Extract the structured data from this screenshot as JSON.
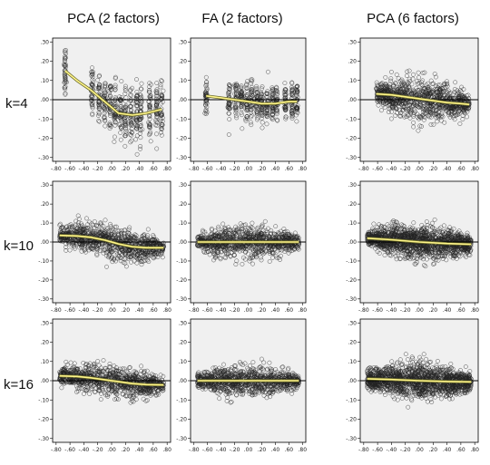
{
  "figure": {
    "column_titles": [
      "PCA (2 factors)",
      "FA (2 factors)",
      "PCA (6 factors)"
    ],
    "row_labels": [
      "k=4",
      "k=10",
      "k=16"
    ]
  },
  "chart_data": {
    "type": "scatter",
    "layout": "3x3 grid of scatter plots with a fitted (yellow) smooth curve and a reference line at y=0",
    "x_ticks": [
      "-.80",
      "-.60",
      "-.40",
      "-.20",
      ".00",
      ".20",
      ".40",
      ".60",
      ".80"
    ],
    "y_ticks": [
      ".30",
      ".20",
      ".10",
      ".00",
      "-.10",
      "-.20",
      "-.30"
    ],
    "xlim": [
      -0.85,
      0.85
    ],
    "ylim": [
      -0.32,
      0.32
    ],
    "reference_line_y": 0,
    "colors": {
      "points": "#222222",
      "fit_line": "#fff58a",
      "fit_edge": "#6b6b2a",
      "panel_bg": "#f0f0f0",
      "ref_line": "#000000"
    },
    "panels": [
      {
        "row": "k=4",
        "column": "PCA (2 factors)",
        "point_pattern": "discrete x columns",
        "x_columns": [
          -0.67,
          -0.28,
          -0.18,
          -0.1,
          -0.02,
          0.05,
          0.13,
          0.2,
          0.28,
          0.36,
          0.42,
          0.55,
          0.65,
          0.72
        ],
        "y_spread": 0.12,
        "fit": {
          "x": [
            -0.67,
            -0.5,
            -0.3,
            -0.1,
            0.1,
            0.3,
            0.5,
            0.72
          ],
          "y": [
            0.15,
            0.1,
            0.05,
            -0.01,
            -0.07,
            -0.08,
            -0.07,
            -0.05
          ]
        }
      },
      {
        "row": "k=4",
        "column": "FA (2 factors)",
        "point_pattern": "discrete x columns",
        "x_columns": [
          -0.62,
          -0.28,
          -0.18,
          -0.1,
          -0.02,
          0.05,
          0.13,
          0.2,
          0.28,
          0.36,
          0.42,
          0.55,
          0.65,
          0.72
        ],
        "y_spread": 0.08,
        "fit": {
          "x": [
            -0.62,
            -0.4,
            -0.2,
            0.0,
            0.2,
            0.4,
            0.6,
            0.72
          ],
          "y": [
            0.02,
            0.01,
            0.0,
            -0.01,
            -0.02,
            -0.02,
            -0.01,
            -0.01
          ]
        }
      },
      {
        "row": "k=4",
        "column": "PCA (6 factors)",
        "point_pattern": "dense cloud",
        "x_range": [
          -0.62,
          0.72
        ],
        "y_spread": 0.1,
        "fit": {
          "x": [
            -0.62,
            -0.4,
            -0.2,
            0.0,
            0.2,
            0.4,
            0.6,
            0.72
          ],
          "y": [
            0.03,
            0.025,
            0.015,
            0.005,
            -0.005,
            -0.015,
            -0.02,
            -0.025
          ]
        }
      },
      {
        "row": "k=10",
        "column": "PCA (2 factors)",
        "point_pattern": "dense cloud",
        "x_range": [
          -0.75,
          0.75
        ],
        "y_spread": 0.08,
        "fit": {
          "x": [
            -0.75,
            -0.5,
            -0.3,
            -0.1,
            0.1,
            0.3,
            0.5,
            0.75
          ],
          "y": [
            0.035,
            0.032,
            0.025,
            0.01,
            -0.01,
            -0.025,
            -0.03,
            -0.03
          ]
        }
      },
      {
        "row": "k=10",
        "column": "FA (2 factors)",
        "point_pattern": "dense cloud",
        "x_range": [
          -0.75,
          0.75
        ],
        "y_spread": 0.07,
        "fit": {
          "x": [
            -0.75,
            -0.4,
            0.0,
            0.4,
            0.75
          ],
          "y": [
            0.0,
            0.0,
            0.0,
            0.0,
            0.0
          ]
        }
      },
      {
        "row": "k=10",
        "column": "PCA (6 factors)",
        "point_pattern": "very dense cloud",
        "x_range": [
          -0.75,
          0.75
        ],
        "y_spread": 0.08,
        "fit": {
          "x": [
            -0.75,
            -0.4,
            0.0,
            0.4,
            0.75
          ],
          "y": [
            0.02,
            0.012,
            0.0,
            -0.008,
            -0.012
          ]
        }
      },
      {
        "row": "k=16",
        "column": "PCA (2 factors)",
        "point_pattern": "dense cloud",
        "x_range": [
          -0.75,
          0.75
        ],
        "y_spread": 0.07,
        "fit": {
          "x": [
            -0.75,
            -0.5,
            -0.3,
            -0.1,
            0.1,
            0.3,
            0.5,
            0.75
          ],
          "y": [
            0.025,
            0.022,
            0.015,
            0.005,
            -0.005,
            -0.015,
            -0.02,
            -0.022
          ]
        }
      },
      {
        "row": "k=16",
        "column": "FA (2 factors)",
        "point_pattern": "dense cloud",
        "x_range": [
          -0.75,
          0.75
        ],
        "y_spread": 0.07,
        "fit": {
          "x": [
            -0.75,
            -0.4,
            0.0,
            0.4,
            0.75
          ],
          "y": [
            0.0,
            0.0,
            0.0,
            0.0,
            0.0
          ]
        }
      },
      {
        "row": "k=16",
        "column": "PCA (6 factors)",
        "point_pattern": "very dense cloud",
        "x_range": [
          -0.75,
          0.75
        ],
        "y_spread": 0.08,
        "fit": {
          "x": [
            -0.75,
            -0.4,
            0.0,
            0.4,
            0.75
          ],
          "y": [
            0.01,
            0.006,
            0.0,
            -0.004,
            -0.006
          ]
        }
      }
    ]
  }
}
